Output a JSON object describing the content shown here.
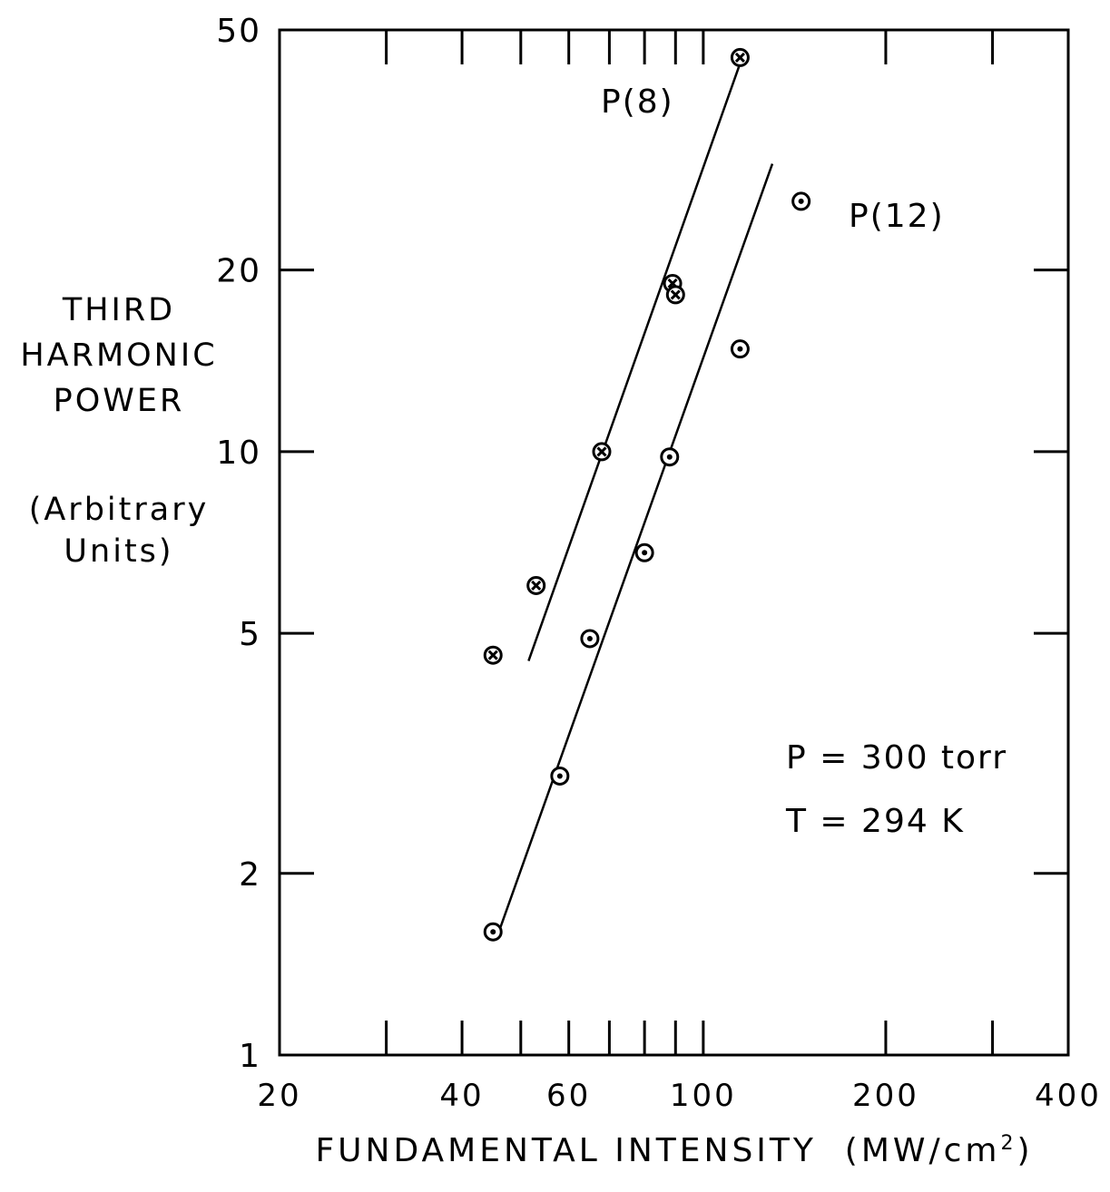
{
  "chart_data": {
    "type": "scatter",
    "x_scale": "log",
    "y_scale": "log",
    "xlim": [
      20,
      400
    ],
    "ylim": [
      1,
      50
    ],
    "xlabel": "FUNDAMENTAL INTENSITY",
    "xlabel_unit_base": "(MW/cm",
    "xlabel_unit_sup": "2",
    "xlabel_unit_close": ")",
    "ylabel_lines": [
      "THIRD",
      "HARMONIC",
      "POWER"
    ],
    "ylabel_unit_lines": [
      "(Arbitrary",
      "Units)"
    ],
    "x_tick_labels": [
      "20",
      "40",
      "60",
      "100",
      "200",
      "400"
    ],
    "x_tick_values": [
      20,
      40,
      60,
      100,
      200,
      400
    ],
    "x_minor_ticks": [
      30,
      50,
      70,
      80,
      90,
      300
    ],
    "y_tick_labels": [
      "1",
      "2",
      "5",
      "10",
      "20",
      "50"
    ],
    "y_tick_values": [
      1,
      2,
      5,
      10,
      20,
      50
    ],
    "grid": false,
    "annotations": {
      "pressure": "P = 300 torr",
      "temperature": "T = 294 K"
    },
    "series": [
      {
        "name": "P(8)",
        "marker": "circle-x",
        "points": [
          [
            45,
            4.6
          ],
          [
            53,
            6.0
          ],
          [
            68,
            10.0
          ],
          [
            89,
            19.0
          ],
          [
            90,
            18.2
          ],
          [
            115,
            45
          ]
        ],
        "fit_line": [
          [
            51.5,
            4.5
          ],
          [
            115,
            44
          ]
        ]
      },
      {
        "name": "P(12)",
        "marker": "circle-dot",
        "points": [
          [
            45,
            1.6
          ],
          [
            58,
            2.9
          ],
          [
            65,
            4.9
          ],
          [
            80,
            6.8
          ],
          [
            88,
            9.8
          ],
          [
            115,
            14.8
          ],
          [
            145,
            26
          ]
        ],
        "fit_line": [
          [
            46,
            1.6
          ],
          [
            130,
            30
          ]
        ]
      }
    ]
  }
}
